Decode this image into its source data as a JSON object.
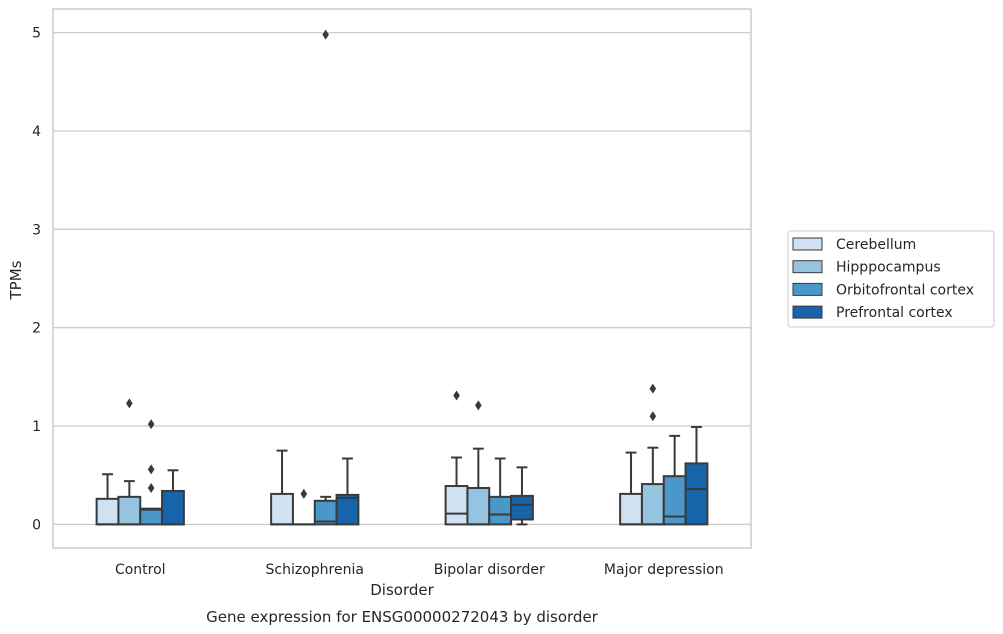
{
  "caption": "Gene expression for ENSG00000272043 by disorder",
  "colors": {
    "Cerebellum": "#d0e1f2",
    "Hipppocampus": "#94c4df",
    "Orbitofrontal cortex": "#4a98c9",
    "Prefrontal cortex": "#1764ab",
    "line": "#3a3a3a",
    "grid": "#cccccc",
    "frame": "#cccccc"
  },
  "chart_data": {
    "type": "boxplot",
    "xlabel": "Disorder",
    "ylabel": "TPMs",
    "ylim": [
      -0.24,
      5.24
    ],
    "yticks": [
      0,
      1,
      2,
      3,
      4,
      5
    ],
    "grid": true,
    "legend_position": "right",
    "categories": [
      "Control",
      "Schizophrenia",
      "Bipolar disorder",
      "Major depression"
    ],
    "series": [
      {
        "name": "Cerebellum",
        "boxes": [
          {
            "q1": 0.0,
            "median": 0.0,
            "q3": 0.26,
            "whislo": 0.0,
            "whishi": 0.51,
            "fliers": []
          },
          {
            "q1": 0.0,
            "median": 0.0,
            "q3": 0.31,
            "whislo": 0.0,
            "whishi": 0.75,
            "fliers": []
          },
          {
            "q1": 0.0,
            "median": 0.11,
            "q3": 0.39,
            "whislo": 0.0,
            "whishi": 0.68,
            "fliers": [
              1.31
            ]
          },
          {
            "q1": 0.0,
            "median": 0.0,
            "q3": 0.31,
            "whislo": 0.0,
            "whishi": 0.73,
            "fliers": []
          }
        ]
      },
      {
        "name": "Hipppocampus",
        "boxes": [
          {
            "q1": 0.0,
            "median": 0.0,
            "q3": 0.28,
            "whislo": 0.0,
            "whishi": 0.44,
            "fliers": [
              1.23
            ]
          },
          {
            "q1": 0.0,
            "median": 0.0,
            "q3": 0.0,
            "whislo": 0.0,
            "whishi": 0.0,
            "fliers": [
              0.31
            ]
          },
          {
            "q1": 0.0,
            "median": 0.0,
            "q3": 0.37,
            "whislo": 0.0,
            "whishi": 0.77,
            "fliers": [
              1.21
            ]
          },
          {
            "q1": 0.0,
            "median": 0.0,
            "q3": 0.41,
            "whislo": 0.0,
            "whishi": 0.78,
            "fliers": [
              1.38,
              1.1
            ]
          }
        ]
      },
      {
        "name": "Orbitofrontal cortex",
        "boxes": [
          {
            "q1": 0.0,
            "median": 0.15,
            "q3": 0.16,
            "whislo": 0.0,
            "whishi": 0.16,
            "fliers": [
              1.02,
              0.56,
              0.37
            ]
          },
          {
            "q1": 0.0,
            "median": 0.03,
            "q3": 0.24,
            "whislo": 0.0,
            "whishi": 0.28,
            "fliers": [
              4.98
            ]
          },
          {
            "q1": 0.0,
            "median": 0.1,
            "q3": 0.28,
            "whislo": 0.0,
            "whishi": 0.67,
            "fliers": []
          },
          {
            "q1": 0.0,
            "median": 0.08,
            "q3": 0.49,
            "whislo": 0.0,
            "whishi": 0.9,
            "fliers": []
          }
        ]
      },
      {
        "name": "Prefrontal cortex",
        "boxes": [
          {
            "q1": 0.0,
            "median": 0.0,
            "q3": 0.34,
            "whislo": 0.0,
            "whishi": 0.55,
            "fliers": []
          },
          {
            "q1": 0.0,
            "median": 0.27,
            "q3": 0.3,
            "whislo": 0.0,
            "whishi": 0.67,
            "fliers": []
          },
          {
            "q1": 0.05,
            "median": 0.2,
            "q3": 0.29,
            "whislo": 0.0,
            "whishi": 0.58,
            "fliers": []
          },
          {
            "q1": 0.0,
            "median": 0.36,
            "q3": 0.62,
            "whislo": 0.0,
            "whishi": 0.99,
            "fliers": []
          }
        ]
      }
    ]
  }
}
